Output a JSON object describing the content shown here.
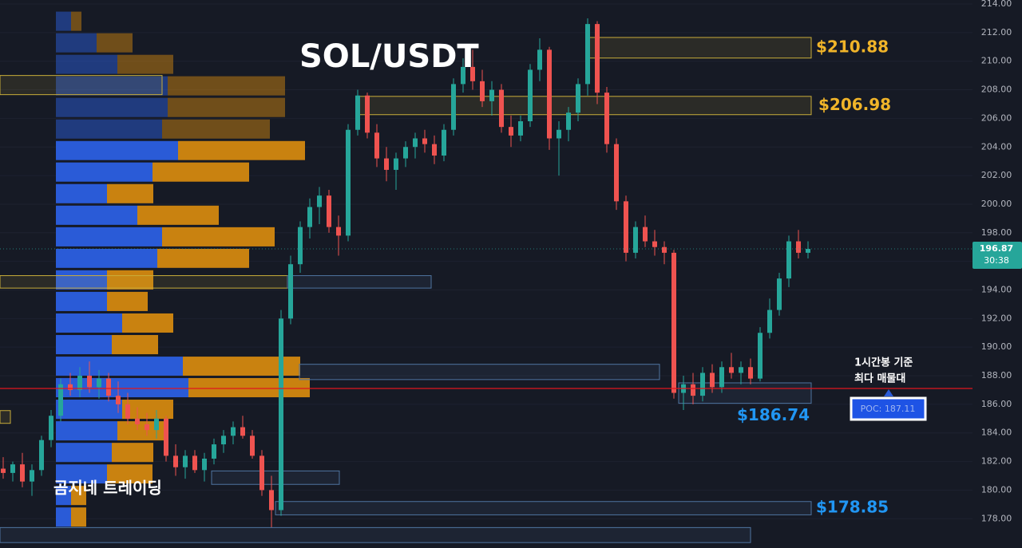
{
  "chart_data": {
    "type": "candlestick",
    "title": "SOL/USDT",
    "watermark": "곰지네 트레이딩",
    "annotation": [
      "1시간봉 기준",
      "최다 매물대"
    ],
    "poc": {
      "value": 187.11,
      "label": "POC: 187.11"
    },
    "last_price": 196.87,
    "countdown": "30:38",
    "up_color": "#26a69a",
    "down_color": "#ef5350",
    "ylim": [
      175.95,
      214.28
    ],
    "yticks": [
      {
        "value": 178,
        "label": "178.00"
      },
      {
        "value": 180,
        "label": "180.00"
      },
      {
        "value": 182,
        "label": "182.00"
      },
      {
        "value": 184,
        "label": "184.00"
      },
      {
        "value": 186,
        "label": "186.00"
      },
      {
        "value": 188,
        "label": "188.00"
      },
      {
        "value": 190,
        "label": "190.00"
      },
      {
        "value": 192,
        "label": "192.00"
      },
      {
        "value": 194,
        "label": "194.00"
      },
      {
        "value": 196,
        "label": "196.00"
      },
      {
        "value": 198,
        "label": "198.00"
      },
      {
        "value": 200,
        "label": "200.00"
      },
      {
        "value": 202,
        "label": "202.00"
      },
      {
        "value": 204,
        "label": "204.00"
      },
      {
        "value": 206,
        "label": "206.00"
      },
      {
        "value": 208,
        "label": "208.00"
      },
      {
        "value": 210,
        "label": "210.00"
      },
      {
        "value": 212,
        "label": "212.00"
      },
      {
        "value": 214,
        "label": "214.00"
      }
    ],
    "grid": true,
    "ohlc": [
      [
        181.5,
        182.3,
        180.8,
        181.2
      ],
      [
        181.2,
        182.0,
        180.6,
        181.8
      ],
      [
        181.8,
        182.6,
        180.2,
        180.6
      ],
      [
        180.6,
        181.8,
        179.6,
        181.4
      ],
      [
        181.4,
        183.8,
        181.0,
        183.5
      ],
      [
        183.5,
        185.6,
        183.0,
        185.2
      ],
      [
        185.2,
        187.8,
        184.8,
        187.4
      ],
      [
        187.4,
        188.2,
        186.6,
        187.0
      ],
      [
        187.0,
        188.6,
        186.5,
        188.0
      ],
      [
        188.0,
        189.0,
        186.8,
        187.2
      ],
      [
        187.2,
        188.4,
        186.4,
        187.8
      ],
      [
        187.8,
        188.2,
        186.2,
        186.6
      ],
      [
        186.6,
        187.6,
        185.4,
        186.0
      ],
      [
        186.0,
        186.8,
        184.6,
        185.0
      ],
      [
        185.0,
        185.8,
        184.2,
        184.6
      ],
      [
        184.6,
        185.4,
        183.8,
        184.2
      ],
      [
        184.2,
        185.6,
        183.6,
        185.0
      ],
      [
        185.0,
        185.2,
        182.0,
        182.4
      ],
      [
        182.4,
        183.2,
        181.0,
        181.6
      ],
      [
        181.6,
        182.8,
        180.8,
        182.4
      ],
      [
        182.4,
        182.8,
        181.2,
        181.4
      ],
      [
        181.4,
        182.6,
        180.6,
        182.2
      ],
      [
        182.2,
        183.6,
        181.8,
        183.2
      ],
      [
        183.2,
        184.2,
        182.6,
        183.8
      ],
      [
        183.8,
        184.8,
        183.2,
        184.4
      ],
      [
        184.4,
        185.2,
        183.6,
        183.8
      ],
      [
        183.8,
        184.2,
        182.2,
        182.4
      ],
      [
        182.4,
        182.8,
        179.6,
        180.0
      ],
      [
        180.0,
        181.0,
        177.4,
        178.6
      ],
      [
        178.6,
        192.6,
        178.2,
        192.0
      ],
      [
        192.0,
        196.4,
        191.6,
        195.8
      ],
      [
        195.8,
        198.8,
        195.2,
        198.4
      ],
      [
        198.4,
        200.4,
        197.6,
        199.8
      ],
      [
        199.8,
        201.2,
        198.6,
        200.6
      ],
      [
        200.6,
        201.0,
        198.0,
        198.4
      ],
      [
        198.4,
        199.2,
        196.4,
        197.8
      ],
      [
        197.8,
        205.6,
        197.4,
        205.2
      ],
      [
        205.2,
        208.0,
        204.8,
        207.6
      ],
      [
        207.6,
        207.8,
        204.6,
        205.0
      ],
      [
        205.0,
        205.6,
        202.6,
        203.2
      ],
      [
        203.2,
        204.0,
        201.6,
        202.4
      ],
      [
        202.4,
        203.6,
        201.0,
        203.2
      ],
      [
        203.2,
        204.4,
        202.6,
        204.0
      ],
      [
        204.0,
        205.0,
        203.2,
        204.6
      ],
      [
        204.6,
        205.2,
        203.6,
        204.2
      ],
      [
        204.2,
        204.8,
        202.8,
        203.4
      ],
      [
        203.4,
        205.6,
        203.0,
        205.2
      ],
      [
        205.2,
        208.8,
        204.8,
        208.4
      ],
      [
        208.4,
        210.2,
        207.8,
        209.6
      ],
      [
        209.6,
        210.8,
        208.0,
        208.6
      ],
      [
        208.6,
        209.4,
        206.8,
        207.2
      ],
      [
        207.2,
        208.6,
        206.2,
        208.0
      ],
      [
        208.0,
        208.4,
        205.0,
        205.4
      ],
      [
        205.4,
        206.2,
        204.0,
        204.8
      ],
      [
        204.8,
        206.2,
        204.4,
        205.8
      ],
      [
        205.8,
        209.8,
        205.4,
        209.4
      ],
      [
        209.4,
        211.6,
        208.6,
        210.8
      ],
      [
        210.8,
        211.0,
        203.8,
        204.6
      ],
      [
        204.6,
        205.8,
        202.0,
        205.2
      ],
      [
        205.2,
        206.8,
        204.4,
        206.4
      ],
      [
        206.4,
        208.8,
        205.8,
        208.4
      ],
      [
        208.4,
        213.0,
        207.6,
        212.6
      ],
      [
        212.6,
        212.8,
        207.0,
        207.8
      ],
      [
        207.8,
        208.2,
        203.6,
        204.2
      ],
      [
        204.2,
        204.6,
        199.6,
        200.2
      ],
      [
        200.2,
        200.6,
        196.0,
        196.6
      ],
      [
        196.6,
        198.8,
        196.2,
        198.4
      ],
      [
        198.4,
        199.2,
        197.0,
        197.4
      ],
      [
        197.4,
        198.2,
        196.4,
        197.0
      ],
      [
        197.0,
        197.4,
        195.8,
        196.6
      ],
      [
        196.6,
        196.8,
        186.4,
        186.8
      ],
      [
        186.8,
        188.0,
        185.6,
        187.4
      ],
      [
        187.4,
        188.2,
        186.0,
        186.6
      ],
      [
        186.6,
        188.6,
        186.2,
        188.2
      ],
      [
        188.2,
        188.8,
        186.8,
        187.2
      ],
      [
        187.2,
        189.0,
        186.8,
        188.6
      ],
      [
        188.6,
        189.6,
        187.8,
        188.2
      ],
      [
        188.2,
        189.0,
        187.4,
        188.6
      ],
      [
        188.6,
        189.2,
        187.4,
        187.8
      ],
      [
        187.8,
        191.4,
        187.6,
        191.0
      ],
      [
        191.0,
        193.4,
        190.6,
        192.6
      ],
      [
        192.6,
        195.2,
        192.2,
        194.8
      ],
      [
        194.8,
        197.8,
        194.2,
        197.4
      ],
      [
        197.4,
        198.2,
        196.2,
        196.6
      ],
      [
        196.6,
        197.4,
        196.2,
        196.87
      ]
    ],
    "volume_profile": {
      "bins": [
        213.55,
        212.04,
        210.53,
        209.03,
        207.52,
        206.01,
        204.5,
        203.0,
        201.49,
        199.98,
        198.47,
        196.96,
        195.46,
        193.95,
        192.44,
        190.93,
        189.42,
        187.92,
        186.41,
        184.9,
        183.39,
        181.88,
        180.38,
        178.87,
        177.36
      ],
      "buy": [
        19,
        51,
        77,
        140,
        140,
        133,
        153,
        121,
        64,
        102,
        133,
        127,
        64,
        64,
        83,
        70,
        159,
        166,
        83,
        77,
        70,
        64,
        19,
        19
      ],
      "sell": [
        13,
        45,
        70,
        147,
        147,
        135,
        159,
        121,
        58,
        102,
        141,
        115,
        58,
        51,
        64,
        58,
        147,
        152,
        64,
        63,
        52,
        57,
        19,
        19
      ],
      "buy_color": "#2a5bd7",
      "sell_color": "#c98210"
    },
    "zones": [
      {
        "low": 210.22,
        "high": 211.66,
        "color": "#c9ad3a",
        "label": "$210.88"
      },
      {
        "low": 206.26,
        "high": 207.54,
        "color": "#c9ad3a",
        "label": "$206.98"
      },
      {
        "low": 207.66,
        "high": 209.0,
        "color": "#c9ad3a"
      },
      {
        "low": 194.13,
        "high": 195.0,
        "color": "#c9ad3a"
      },
      {
        "low": 194.13,
        "high": 195.0,
        "color": "#4f74a0"
      },
      {
        "low": 187.73,
        "high": 188.8,
        "color": "#4f74a0"
      },
      {
        "low": 186.07,
        "high": 187.5,
        "color": "#4f74a0",
        "label": "$186.74"
      },
      {
        "low": 180.4,
        "high": 181.34,
        "color": "#4f74a0"
      },
      {
        "low": 178.27,
        "high": 179.2,
        "color": "#4f74a0",
        "label": "$178.85"
      },
      {
        "low": 176.33,
        "high": 177.38,
        "color": "#4f74a0"
      },
      {
        "low": 184.67,
        "high": 185.56,
        "color": "#c9ad3a"
      }
    ]
  }
}
